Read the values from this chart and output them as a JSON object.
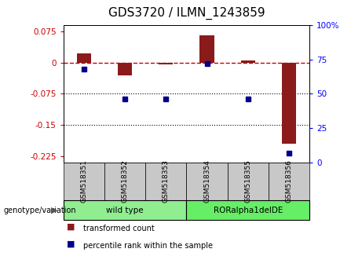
{
  "title": "GDS3720 / ILMN_1243859",
  "samples": [
    "GSM518351",
    "GSM518352",
    "GSM518353",
    "GSM518354",
    "GSM518355",
    "GSM518356"
  ],
  "bar_values": [
    0.022,
    -0.03,
    -0.005,
    0.065,
    0.005,
    -0.195
  ],
  "percentile_values": [
    68,
    46,
    46,
    72,
    46,
    7
  ],
  "bar_color": "#8B1A1A",
  "point_color": "#00008B",
  "ylim_left": [
    -0.24,
    0.09
  ],
  "ylim_right": [
    0,
    100
  ],
  "yticks_left": [
    0.075,
    0,
    -0.075,
    -0.15,
    -0.225
  ],
  "yticks_right": [
    100,
    75,
    50,
    25,
    0
  ],
  "groups": [
    {
      "label": "wild type",
      "indices": [
        0,
        1,
        2
      ],
      "color": "#90EE90"
    },
    {
      "label": "RORalpha1delDE",
      "indices": [
        3,
        4,
        5
      ],
      "color": "#66EE66"
    }
  ],
  "group_label": "genotype/variation",
  "legend_items": [
    {
      "label": "transformed count",
      "color": "#8B1A1A"
    },
    {
      "label": "percentile rank within the sample",
      "color": "#00008B"
    }
  ],
  "hline_color": "#CC0000",
  "dotted_lines": [
    -0.075,
    -0.15
  ],
  "dotted_color": "black",
  "bg_color": "#ffffff",
  "plot_bg_color": "#ffffff",
  "title_fontsize": 11,
  "bar_width": 0.35,
  "sample_box_color": "#C8C8C8"
}
